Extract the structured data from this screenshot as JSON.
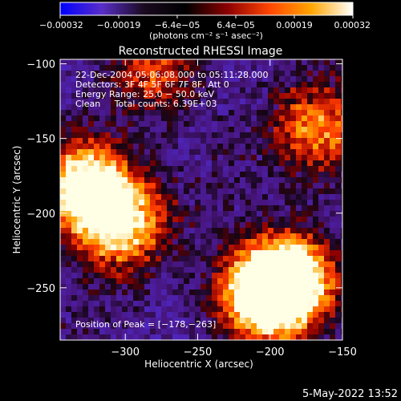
{
  "chart_data": {
    "type": "heatmap",
    "title": "Reconstructed RHESSI Image",
    "xlabel": "Heliocentric X (arcsec)",
    "ylabel": "Heliocentric Y (arcsec)",
    "xlim": [
      -345,
      -150
    ],
    "ylim": [
      -285,
      -97
    ],
    "x_ticks": [
      -300,
      -250,
      -200,
      -150
    ],
    "x_tick_labels": [
      "−300",
      "−250",
      "−200",
      "−150"
    ],
    "y_ticks": [
      -100,
      -150,
      -200,
      -250
    ],
    "y_tick_labels": [
      "−100",
      "−150",
      "−200",
      "−250"
    ],
    "colorbar": {
      "range": [
        -0.00032,
        0.00032
      ],
      "tick_labels": [
        "−0.00032",
        "−0.00019",
        "−6.4e−05",
        "6.4e−05",
        "0.00019",
        "0.00032"
      ],
      "label": "(photons cm⁻² s⁻¹ asec⁻²)",
      "colors": [
        "#0000ff",
        "#5a2ec8",
        "#1a0a20",
        "#000000",
        "#8b0000",
        "#ff4500",
        "#ffa500",
        "#ffffff"
      ]
    },
    "annotations": [
      "22-Dec-2004 05:06:08.000 to 05:11:28.000",
      "Detectors: 3F 4F 5F 6F 7F 8F, Att 0",
      "Energy Range: 25.0 − 50.0 keV",
      "Clean     Total counts: 6.39E+03"
    ],
    "peak_text": "Position of Peak = [−178,−263]",
    "bright_regions": [
      {
        "x": -205,
        "y": -255,
        "intensity": 1.0
      },
      {
        "x": -185,
        "y": -245,
        "intensity": 0.95
      },
      {
        "x": -330,
        "y": -180,
        "intensity": 0.9
      },
      {
        "x": -305,
        "y": -205,
        "intensity": 0.85
      },
      {
        "x": -165,
        "y": -145,
        "intensity": 0.6
      },
      {
        "x": -280,
        "y": -105,
        "intensity": 0.5
      }
    ],
    "grid": false
  },
  "footer": {
    "date": "5-May-2022 13:52"
  }
}
